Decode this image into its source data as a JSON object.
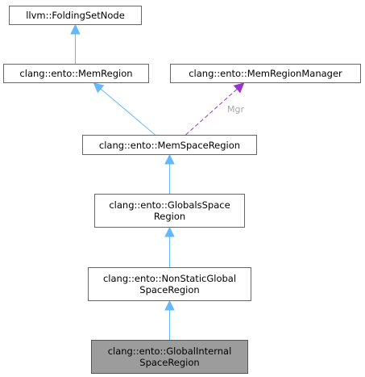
{
  "diagram": {
    "colors": {
      "inheritance_edge": "#63b8ff",
      "usage_edge": "#9a32cd",
      "node_border": "#666666",
      "current_node_fill": "#9c9c9c"
    },
    "nodes": [
      {
        "id": "foldingsetnode",
        "lines": [
          "llvm::FoldingSetNode"
        ]
      },
      {
        "id": "memregion",
        "lines": [
          "clang::ento::MemRegion"
        ]
      },
      {
        "id": "memregionmanager",
        "lines": [
          "clang::ento::MemRegionManager"
        ]
      },
      {
        "id": "memspaceregion",
        "lines": [
          "clang::ento::MemSpaceRegion"
        ]
      },
      {
        "id": "globalsspaceregion",
        "lines": [
          "clang::ento::GlobalsSpace",
          "Region"
        ]
      },
      {
        "id": "nonstaticglobalspaceregion",
        "lines": [
          "clang::ento::NonStaticGlobal",
          "SpaceRegion"
        ]
      },
      {
        "id": "globalinternalspaceregion",
        "lines": [
          "clang::ento::GlobalInternal",
          "SpaceRegion"
        ],
        "current": true
      }
    ],
    "edges": [
      {
        "from": "memregion",
        "to": "foldingsetnode",
        "kind": "inheritance"
      },
      {
        "from": "memspaceregion",
        "to": "memregion",
        "kind": "inheritance"
      },
      {
        "from": "memspaceregion",
        "to": "memregionmanager",
        "kind": "usage",
        "label": "Mgr"
      },
      {
        "from": "globalsspaceregion",
        "to": "memspaceregion",
        "kind": "inheritance"
      },
      {
        "from": "nonstaticglobalspaceregion",
        "to": "globalsspaceregion",
        "kind": "inheritance"
      },
      {
        "from": "globalinternalspaceregion",
        "to": "nonstaticglobalspaceregion",
        "kind": "inheritance"
      }
    ]
  }
}
